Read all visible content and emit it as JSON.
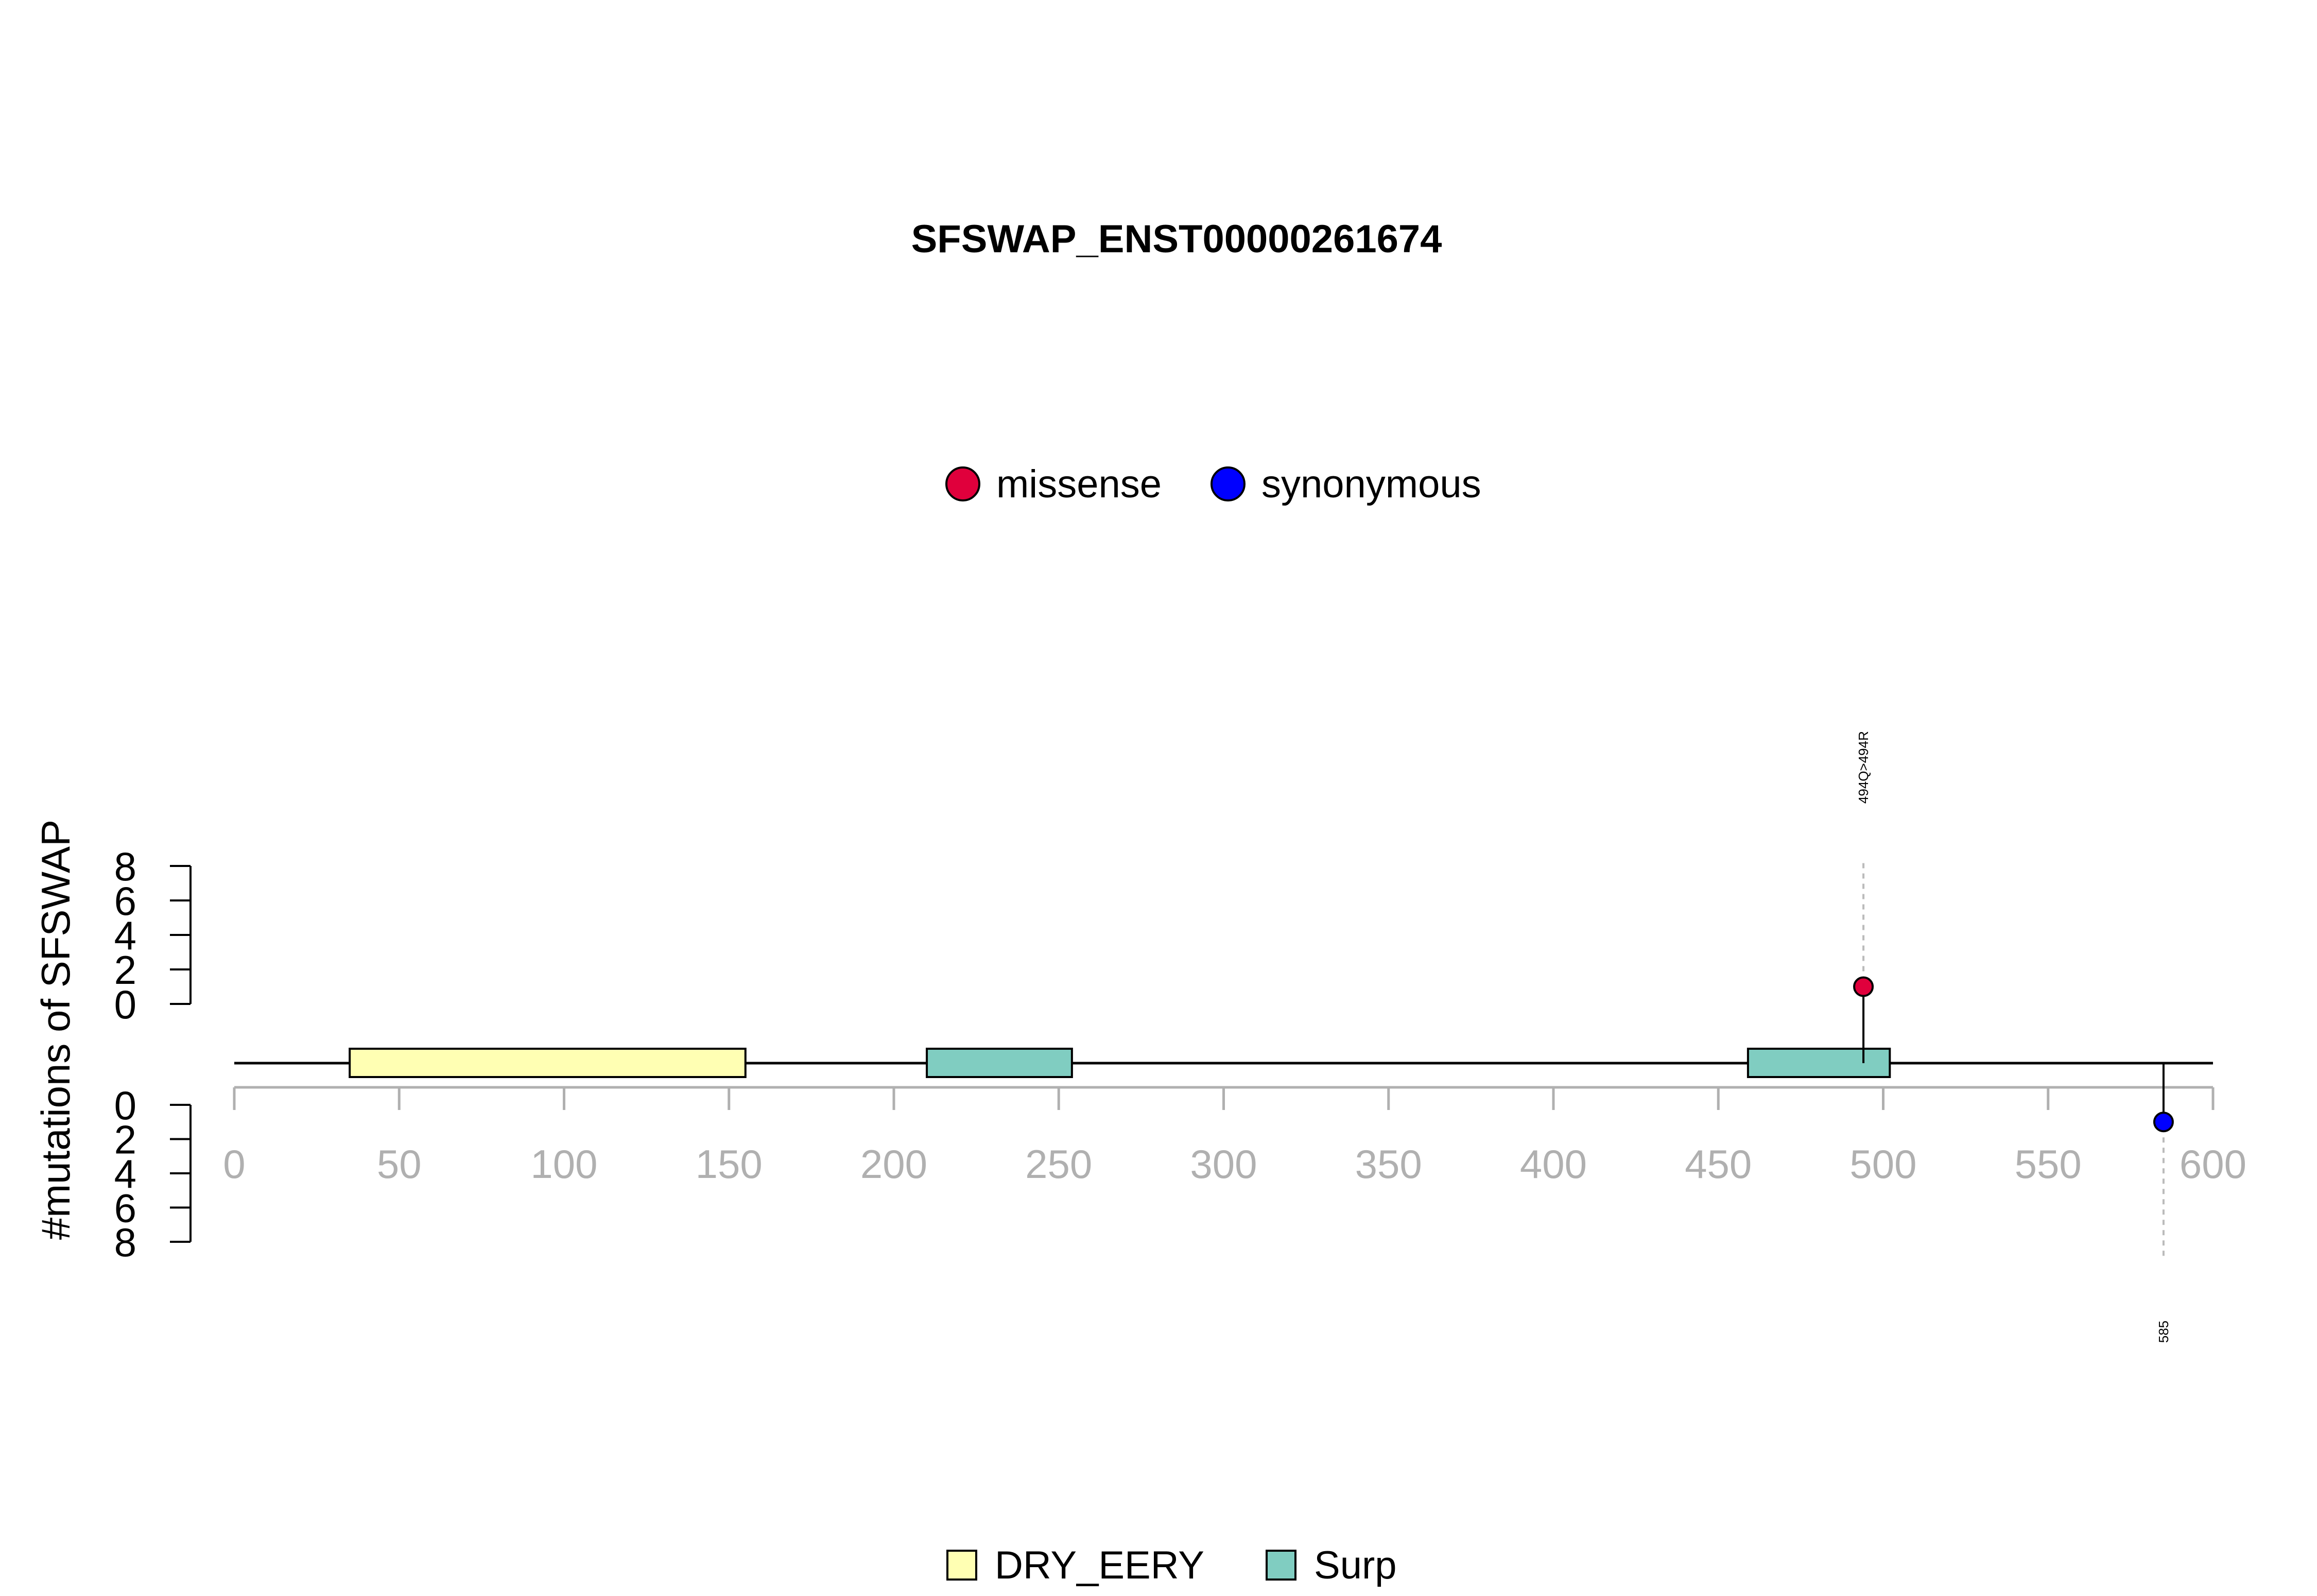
{
  "chart_data": {
    "type": "lollipop",
    "title": "SFSWAP_ENST00000261674",
    "ylabel": "#mutations of SFSWAP",
    "xlim": [
      0,
      600
    ],
    "x_ticks": [
      "0",
      "50",
      "100",
      "150",
      "200",
      "250",
      "300",
      "350",
      "400",
      "450",
      "500",
      "550",
      "600"
    ],
    "y_ticks_top": [
      "0",
      "2",
      "4",
      "6",
      "8"
    ],
    "y_ticks_bottom": [
      "0",
      "2",
      "4",
      "6",
      "8"
    ],
    "ylim": [
      0,
      8
    ],
    "mutation_legend": [
      {
        "name": "missense",
        "color": "#E0003C"
      },
      {
        "name": "synonymous",
        "color": "#0000FF"
      }
    ],
    "domain_legend": [
      {
        "name": "DRY_EERY",
        "color": "#FFFFB3"
      },
      {
        "name": "Surp",
        "color": "#80CDC1"
      }
    ],
    "domains": [
      {
        "name": "DRY_EERY",
        "start": 35,
        "end": 155,
        "color": "#FFFFB3"
      },
      {
        "name": "Surp",
        "start": 210,
        "end": 254,
        "color": "#80CDC1"
      },
      {
        "name": "Surp",
        "start": 459,
        "end": 502,
        "color": "#80CDC1"
      }
    ],
    "mutations": [
      {
        "position": 494,
        "count": 1,
        "type": "missense",
        "side": "top",
        "label": "494Q>494R",
        "color": "#E0003C"
      },
      {
        "position": 585,
        "count": 1,
        "type": "synonymous",
        "side": "bottom",
        "label": "585",
        "color": "#0000FF"
      }
    ]
  }
}
